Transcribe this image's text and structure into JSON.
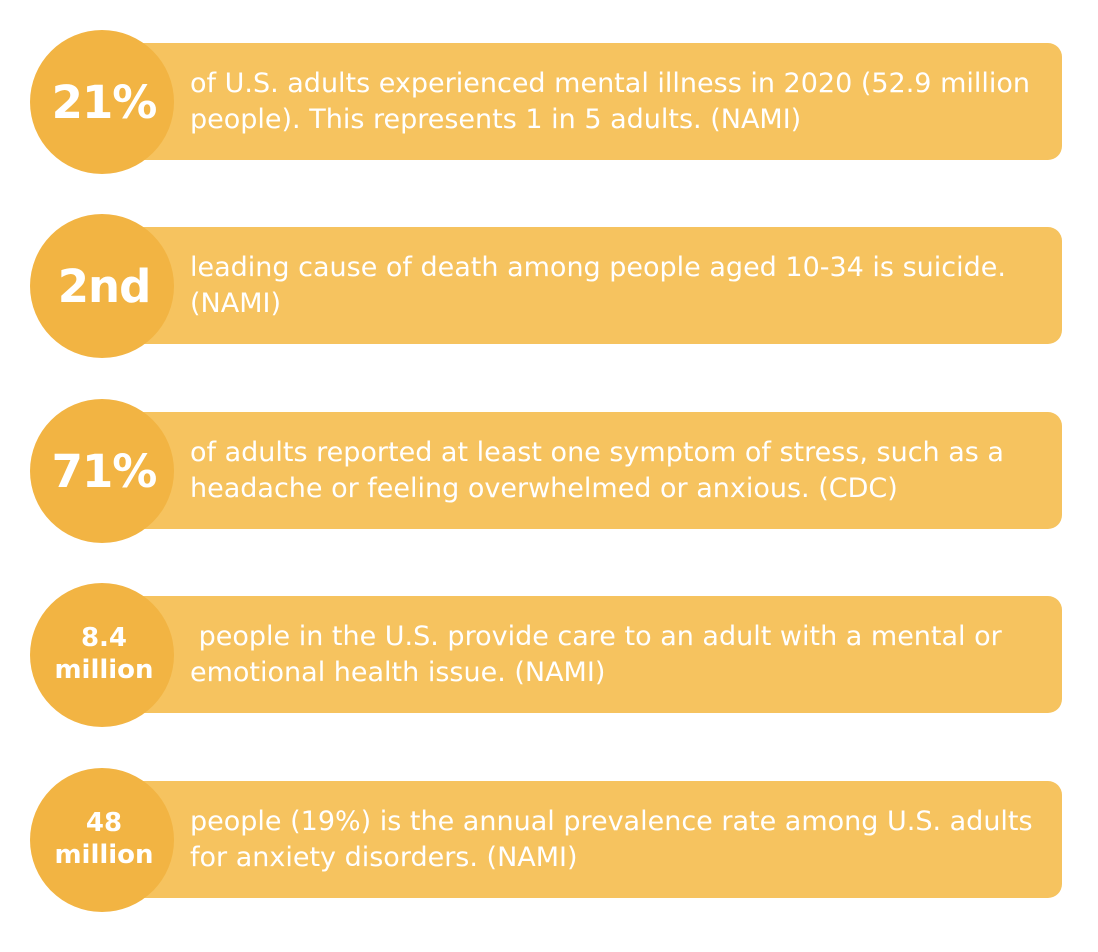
{
  "stats": [
    {
      "figure": "21%",
      "figure_size": "big",
      "description": "of U.S. adults experienced mental illness in 2020 (52.9 million people). This represents 1 in 5 adults. (NAMI)"
    },
    {
      "figure": "2nd",
      "figure_size": "big",
      "description": "leading cause of death among people aged 10-34 is suicide. (NAMI)"
    },
    {
      "figure": "71%",
      "figure_size": "big",
      "description": "of adults reported at least one symptom of stress, such as a headache or feeling overwhelmed or anxious. (CDC)"
    },
    {
      "figure_line1": "8.4",
      "figure_line2": "million",
      "figure_size": "small",
      "description": " people in the U.S. provide care to an adult with a mental or emotional health issue. (NAMI)"
    },
    {
      "figure_line1": "48",
      "figure_line2": "million",
      "figure_size": "small",
      "description": "people (19%) is the annual prevalence rate among U.S. adults for anxiety disorders. (NAMI)"
    }
  ],
  "colors": {
    "bar": "#f6c35f",
    "circle": "#f2b443",
    "text": "#ffffff"
  }
}
